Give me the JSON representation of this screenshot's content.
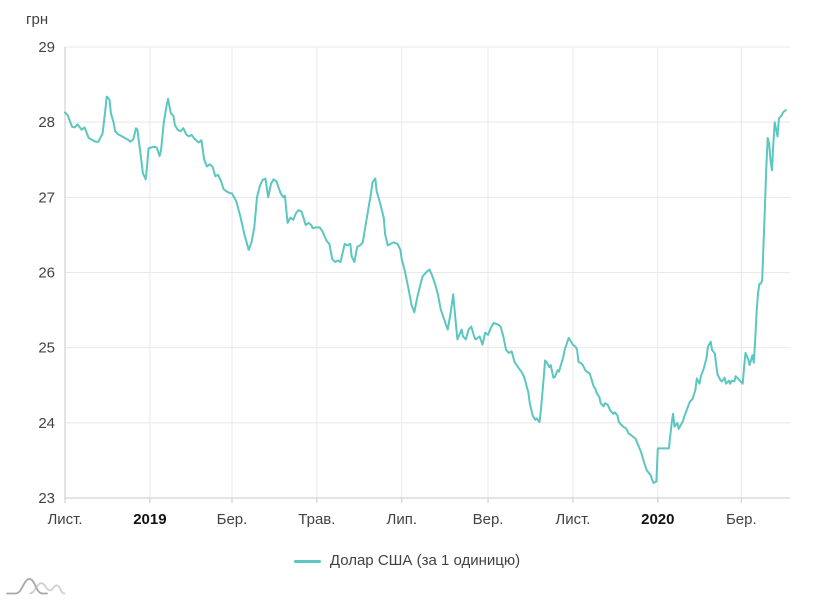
{
  "chart_data": {
    "type": "line",
    "title": "",
    "grid": true,
    "legend_position": "bottom",
    "y_axis": {
      "unit_label": "грн",
      "min": 23,
      "max": 29,
      "ticks": [
        23,
        24,
        25,
        26,
        27,
        28,
        29
      ]
    },
    "x_axis": {
      "start_date": "2018-11-01",
      "domain_days": [
        0,
        521
      ],
      "ticks": [
        {
          "day": 0,
          "label": "Лист."
        },
        {
          "day": 61,
          "label": "2019",
          "bold": true
        },
        {
          "day": 120,
          "label": "Бер."
        },
        {
          "day": 181,
          "label": "Трав."
        },
        {
          "day": 242,
          "label": "Лип."
        },
        {
          "day": 304,
          "label": "Вер."
        },
        {
          "day": 365,
          "label": "Лист."
        },
        {
          "day": 426,
          "label": "2020",
          "bold": true
        },
        {
          "day": 486,
          "label": "Бер."
        }
      ]
    },
    "series": [
      {
        "name": "Долар США (за 1 одиницю)",
        "color": "#5BC7BF",
        "points": [
          [
            0,
            28.13
          ],
          [
            2,
            28.09
          ],
          [
            5,
            27.94
          ],
          [
            7,
            27.93
          ],
          [
            9,
            27.97
          ],
          [
            12,
            27.9
          ],
          [
            14,
            27.93
          ],
          [
            17,
            27.79
          ],
          [
            19,
            27.77
          ],
          [
            22,
            27.74
          ],
          [
            24,
            27.74
          ],
          [
            27,
            27.85
          ],
          [
            29,
            28.17
          ],
          [
            30,
            28.34
          ],
          [
            32,
            28.3
          ],
          [
            33,
            28.12
          ],
          [
            35,
            27.99
          ],
          [
            36,
            27.88
          ],
          [
            38,
            27.84
          ],
          [
            41,
            27.81
          ],
          [
            43,
            27.79
          ],
          [
            45,
            27.77
          ],
          [
            47,
            27.74
          ],
          [
            49,
            27.77
          ],
          [
            51,
            27.92
          ],
          [
            52,
            27.9
          ],
          [
            54,
            27.62
          ],
          [
            56,
            27.32
          ],
          [
            58,
            27.24
          ],
          [
            59,
            27.42
          ],
          [
            60,
            27.65
          ],
          [
            63,
            27.67
          ],
          [
            65,
            27.67
          ],
          [
            66,
            27.66
          ],
          [
            68,
            27.55
          ],
          [
            69,
            27.62
          ],
          [
            71,
            28.0
          ],
          [
            73,
            28.22
          ],
          [
            74,
            28.31
          ],
          [
            76,
            28.12
          ],
          [
            78,
            28.08
          ],
          [
            79,
            27.96
          ],
          [
            81,
            27.9
          ],
          [
            83,
            27.88
          ],
          [
            85,
            27.92
          ],
          [
            87,
            27.84
          ],
          [
            89,
            27.81
          ],
          [
            91,
            27.83
          ],
          [
            93,
            27.78
          ],
          [
            96,
            27.73
          ],
          [
            98,
            27.76
          ],
          [
            100,
            27.5
          ],
          [
            102,
            27.41
          ],
          [
            104,
            27.44
          ],
          [
            106,
            27.41
          ],
          [
            108,
            27.28
          ],
          [
            110,
            27.3
          ],
          [
            112,
            27.22
          ],
          [
            114,
            27.11
          ],
          [
            116,
            27.08
          ],
          [
            118,
            27.06
          ],
          [
            120,
            27.05
          ],
          [
            123,
            26.95
          ],
          [
            126,
            26.75
          ],
          [
            129,
            26.5
          ],
          [
            132,
            26.3
          ],
          [
            134,
            26.4
          ],
          [
            136,
            26.6
          ],
          [
            138,
            27.0
          ],
          [
            140,
            27.15
          ],
          [
            142,
            27.23
          ],
          [
            144,
            27.25
          ],
          [
            146,
            27.0
          ],
          [
            148,
            27.18
          ],
          [
            150,
            27.24
          ],
          [
            152,
            27.21
          ],
          [
            155,
            27.05
          ],
          [
            157,
            27.0
          ],
          [
            158,
            27.02
          ],
          [
            160,
            26.66
          ],
          [
            162,
            26.73
          ],
          [
            164,
            26.7
          ],
          [
            166,
            26.79
          ],
          [
            168,
            26.83
          ],
          [
            170,
            26.81
          ],
          [
            173,
            26.63
          ],
          [
            175,
            26.66
          ],
          [
            177,
            26.63
          ],
          [
            178,
            26.59
          ],
          [
            180,
            26.6
          ],
          [
            183,
            26.6
          ],
          [
            185,
            26.55
          ],
          [
            188,
            26.42
          ],
          [
            190,
            26.38
          ],
          [
            192,
            26.18
          ],
          [
            194,
            26.14
          ],
          [
            196,
            26.16
          ],
          [
            198,
            26.14
          ],
          [
            201,
            26.38
          ],
          [
            203,
            26.36
          ],
          [
            205,
            26.38
          ],
          [
            206,
            26.21
          ],
          [
            208,
            26.14
          ],
          [
            210,
            26.34
          ],
          [
            212,
            26.36
          ],
          [
            214,
            26.4
          ],
          [
            216,
            26.63
          ],
          [
            218,
            26.85
          ],
          [
            220,
            27.06
          ],
          [
            221,
            27.2
          ],
          [
            223,
            27.25
          ],
          [
            224,
            27.08
          ],
          [
            226,
            26.95
          ],
          [
            227,
            26.88
          ],
          [
            229,
            26.73
          ],
          [
            230,
            26.51
          ],
          [
            232,
            26.36
          ],
          [
            234,
            26.38
          ],
          [
            236,
            26.4
          ],
          [
            239,
            26.38
          ],
          [
            241,
            26.3
          ],
          [
            242,
            26.17
          ],
          [
            244,
            26.04
          ],
          [
            247,
            25.77
          ],
          [
            249,
            25.57
          ],
          [
            251,
            25.47
          ],
          [
            253,
            25.66
          ],
          [
            255,
            25.81
          ],
          [
            257,
            25.95
          ],
          [
            260,
            26.01
          ],
          [
            262,
            26.04
          ],
          [
            264,
            25.95
          ],
          [
            266,
            25.84
          ],
          [
            268,
            25.71
          ],
          [
            270,
            25.51
          ],
          [
            272,
            25.4
          ],
          [
            275,
            25.24
          ],
          [
            277,
            25.45
          ],
          [
            279,
            25.71
          ],
          [
            281,
            25.3
          ],
          [
            282,
            25.11
          ],
          [
            285,
            25.24
          ],
          [
            286,
            25.15
          ],
          [
            288,
            25.11
          ],
          [
            290,
            25.24
          ],
          [
            292,
            25.28
          ],
          [
            294,
            25.15
          ],
          [
            295,
            25.11
          ],
          [
            298,
            25.15
          ],
          [
            300,
            25.04
          ],
          [
            302,
            25.2
          ],
          [
            304,
            25.17
          ],
          [
            306,
            25.26
          ],
          [
            308,
            25.33
          ],
          [
            311,
            25.31
          ],
          [
            313,
            25.28
          ],
          [
            315,
            25.15
          ],
          [
            317,
            24.97
          ],
          [
            319,
            24.93
          ],
          [
            321,
            24.95
          ],
          [
            323,
            24.81
          ],
          [
            326,
            24.73
          ],
          [
            328,
            24.68
          ],
          [
            330,
            24.61
          ],
          [
            331,
            24.54
          ],
          [
            333,
            24.4
          ],
          [
            334,
            24.26
          ],
          [
            336,
            24.1
          ],
          [
            338,
            24.04
          ],
          [
            339,
            24.06
          ],
          [
            341,
            24.01
          ],
          [
            342,
            24.17
          ],
          [
            344,
            24.6
          ],
          [
            345,
            24.83
          ],
          [
            346,
            24.81
          ],
          [
            348,
            24.74
          ],
          [
            349,
            24.77
          ],
          [
            351,
            24.6
          ],
          [
            352,
            24.61
          ],
          [
            354,
            24.7
          ],
          [
            355,
            24.68
          ],
          [
            357,
            24.81
          ],
          [
            358,
            24.87
          ],
          [
            359,
            24.97
          ],
          [
            361,
            25.08
          ],
          [
            362,
            25.13
          ],
          [
            364,
            25.07
          ],
          [
            365,
            25.04
          ],
          [
            367,
            25.01
          ],
          [
            368,
            24.97
          ],
          [
            369,
            24.81
          ],
          [
            371,
            24.79
          ],
          [
            372,
            24.77
          ],
          [
            374,
            24.7
          ],
          [
            375,
            24.68
          ],
          [
            377,
            24.66
          ],
          [
            378,
            24.6
          ],
          [
            380,
            24.48
          ],
          [
            381,
            24.46
          ],
          [
            382,
            24.4
          ],
          [
            384,
            24.34
          ],
          [
            385,
            24.26
          ],
          [
            387,
            24.22
          ],
          [
            388,
            24.26
          ],
          [
            390,
            24.24
          ],
          [
            391,
            24.2
          ],
          [
            392,
            24.16
          ],
          [
            394,
            24.12
          ],
          [
            395,
            24.14
          ],
          [
            397,
            24.1
          ],
          [
            398,
            24.01
          ],
          [
            400,
            23.97
          ],
          [
            401,
            23.95
          ],
          [
            403,
            23.93
          ],
          [
            404,
            23.9
          ],
          [
            405,
            23.86
          ],
          [
            408,
            23.82
          ],
          [
            410,
            23.79
          ],
          [
            412,
            23.7
          ],
          [
            414,
            23.61
          ],
          [
            416,
            23.48
          ],
          [
            418,
            23.37
          ],
          [
            421,
            23.3
          ],
          [
            422,
            23.24
          ],
          [
            423,
            23.2
          ],
          [
            425,
            23.22
          ],
          [
            426,
            23.66
          ],
          [
            428,
            23.66
          ],
          [
            430,
            23.66
          ],
          [
            432,
            23.66
          ],
          [
            434,
            23.66
          ],
          [
            436,
            24.0
          ],
          [
            437,
            24.12
          ],
          [
            438,
            23.95
          ],
          [
            440,
            24.0
          ],
          [
            441,
            23.92
          ],
          [
            444,
            24.02
          ],
          [
            445,
            24.08
          ],
          [
            447,
            24.18
          ],
          [
            449,
            24.28
          ],
          [
            451,
            24.32
          ],
          [
            453,
            24.44
          ],
          [
            454,
            24.59
          ],
          [
            456,
            24.52
          ],
          [
            457,
            24.62
          ],
          [
            459,
            24.72
          ],
          [
            461,
            24.86
          ],
          [
            462,
            25.01
          ],
          [
            464,
            25.08
          ],
          [
            465,
            24.97
          ],
          [
            467,
            24.92
          ],
          [
            468,
            24.77
          ],
          [
            469,
            24.64
          ],
          [
            471,
            24.57
          ],
          [
            472,
            24.55
          ],
          [
            474,
            24.6
          ],
          [
            475,
            24.52
          ],
          [
            477,
            24.56
          ],
          [
            478,
            24.52
          ],
          [
            479,
            24.56
          ],
          [
            481,
            24.55
          ],
          [
            482,
            24.62
          ],
          [
            484,
            24.58
          ],
          [
            485,
            24.56
          ],
          [
            487,
            24.52
          ],
          [
            488,
            24.74
          ],
          [
            489,
            24.93
          ],
          [
            491,
            24.84
          ],
          [
            492,
            24.77
          ],
          [
            494,
            24.9
          ],
          [
            495,
            24.8
          ],
          [
            496,
            25.1
          ],
          [
            497,
            25.47
          ],
          [
            498,
            25.72
          ],
          [
            499,
            25.85
          ],
          [
            500,
            25.85
          ],
          [
            501,
            25.9
          ],
          [
            502,
            26.4
          ],
          [
            503,
            26.9
          ],
          [
            504,
            27.4
          ],
          [
            505,
            27.79
          ],
          [
            506,
            27.72
          ],
          [
            507,
            27.5
          ],
          [
            508,
            27.36
          ],
          [
            509,
            27.7
          ],
          [
            510,
            28.0
          ],
          [
            512,
            27.81
          ],
          [
            513,
            28.05
          ],
          [
            515,
            28.09
          ],
          [
            516,
            28.13
          ],
          [
            518,
            28.16
          ]
        ]
      }
    ]
  },
  "colors": {
    "background": "#ffffff",
    "line": "#5BC7BF",
    "grid": "#e8e8e8",
    "axis": "#c9c9c9",
    "tick_label": "#424242",
    "year_label": "#111111",
    "legend_label": "#424242",
    "logo_dark": "#a7a7a7",
    "logo_light": "#d0d0d0"
  },
  "logo": {
    "icon": "waves-logo"
  }
}
